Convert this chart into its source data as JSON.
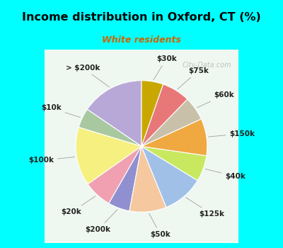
{
  "title": "Income distribution in Oxford, CT (%)",
  "subtitle": "White residents",
  "title_color": "#000000",
  "subtitle_color": "#cc6600",
  "bg_outer": "#00ffff",
  "bg_chart": "#e0f0e8",
  "watermark": "City-Data.com",
  "labels": [
    "> $200k",
    "$10k",
    "$100k",
    "$20k",
    "$200k",
    "$50k",
    "$125k",
    "$40k",
    "$150k",
    "$60k",
    "$75k",
    "$30k"
  ],
  "values": [
    14.5,
    4.5,
    13.5,
    6.5,
    5.0,
    8.5,
    9.5,
    6.0,
    8.5,
    5.5,
    6.5,
    5.0
  ],
  "colors": [
    "#b8a8d8",
    "#a8c8a0",
    "#f5f080",
    "#f0a0b0",
    "#9090d0",
    "#f5c8a0",
    "#a0c0e8",
    "#c8e860",
    "#f0a840",
    "#c8c0a8",
    "#e87878",
    "#c8a800"
  ],
  "startangle": 90,
  "label_fontsize": 7.5,
  "wedge_linewidth": 0.8,
  "wedge_edgecolor": "#ffffff",
  "label_color": "#222222",
  "figsize": [
    4.0,
    3.5
  ],
  "dpi": 100
}
